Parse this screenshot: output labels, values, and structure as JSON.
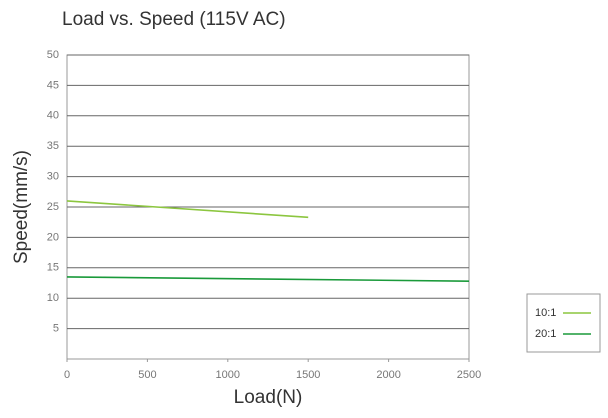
{
  "chart_data": {
    "type": "line",
    "title": "Load vs. Speed (115V AC)",
    "xlabel": "Load(N)",
    "ylabel": "Speed(mm/s)",
    "series": [
      {
        "name": "10:1",
        "color": "#8cc63f",
        "x": [
          0,
          1500
        ],
        "values": [
          26,
          23.3
        ]
      },
      {
        "name": "20:1",
        "color": "#1a9a3a",
        "x": [
          0,
          2500
        ],
        "values": [
          13.5,
          12.8
        ]
      }
    ],
    "xlim": [
      0,
      2500
    ],
    "xticks": [
      0,
      500,
      1000,
      1500,
      2000,
      2500
    ],
    "ylim": [
      0,
      50
    ],
    "yticks": [
      5,
      10,
      15,
      20,
      25,
      30,
      35,
      40,
      45,
      50
    ],
    "grid": true,
    "legend": "right"
  }
}
